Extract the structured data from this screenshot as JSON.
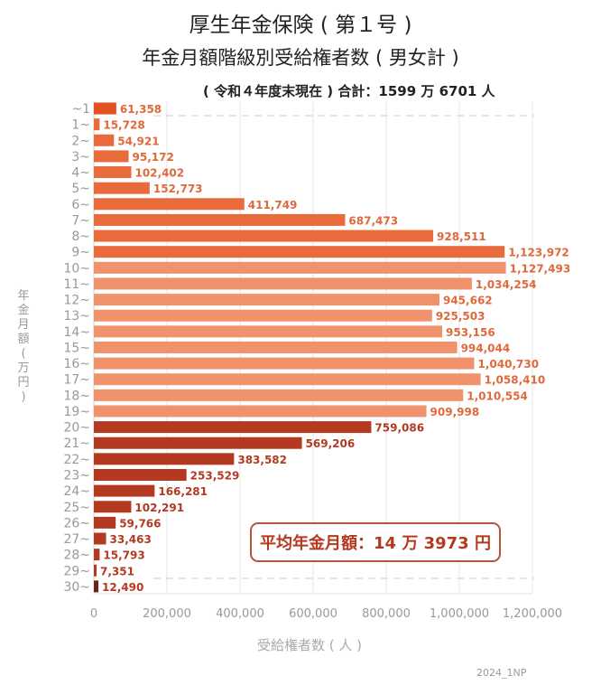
{
  "chart_data": {
    "type": "bar",
    "orientation": "horizontal",
    "title": "厚生年金保険 ( 第１号 )",
    "subtitle": "年金月額階級別受給権者数 ( 男女計 )",
    "note": "( 令和４年度末現在 ) 合計：1599 万 6701 人",
    "xlabel": "受給権者数 ( 人 )",
    "ylabel": "年金月額 ( 万円 )",
    "xlim": [
      0,
      1200000
    ],
    "xticks": [
      "0",
      "200,000",
      "400,000",
      "600,000",
      "800,000",
      "1,000,000",
      "1,200,000"
    ],
    "grid": true,
    "categories": [
      "~1",
      "1~",
      "2~",
      "3~",
      "4~",
      "5~",
      "6~",
      "7~",
      "8~",
      "9~",
      "10~",
      "11~",
      "12~",
      "13~",
      "14~",
      "15~",
      "16~",
      "17~",
      "18~",
      "19~",
      "20~",
      "21~",
      "22~",
      "23~",
      "24~",
      "25~",
      "26~",
      "27~",
      "28~",
      "29~",
      "30~"
    ],
    "values": [
      61358,
      15728,
      54921,
      95172,
      102402,
      152773,
      411749,
      687473,
      928511,
      1123972,
      1127493,
      1034254,
      945662,
      925503,
      953156,
      994044,
      1040730,
      1058410,
      1010554,
      909998,
      759086,
      569206,
      383582,
      253529,
      166281,
      102291,
      59766,
      33463,
      15793,
      7351,
      12490
    ],
    "labels": [
      "61,358",
      "15,728",
      "54,921",
      "95,172",
      "102,402",
      "152,773",
      "411,749",
      "687,473",
      "928,511",
      "1,123,972",
      "1,127,493",
      "1,034,254",
      "945,662",
      "925,503",
      "953,156",
      "994,044",
      "1,040,730",
      "1,058,410",
      "1,010,554",
      "909,998",
      "759,086",
      "569,206",
      "383,582",
      "253,529",
      "166,281",
      "102,291",
      "59,766",
      "33,463",
      "15,793",
      "7,351",
      "12,490"
    ],
    "colors": {
      "first": "#e2511f",
      "low": "#e96b3b",
      "mid": "#f0926c",
      "high": "#b33a21",
      "top": "#6b2415"
    },
    "annotation": "平均年金月額：14 万 3973 円"
  },
  "credit": "2024_1NP"
}
